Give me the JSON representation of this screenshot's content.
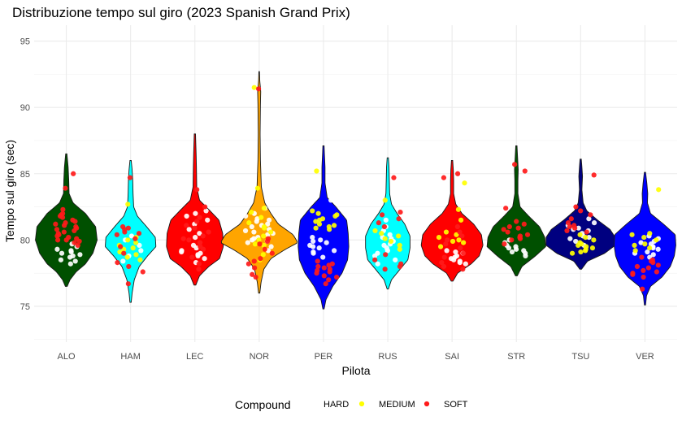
{
  "chart_data": {
    "type": "violin",
    "title": "Distribuzione tempo sul giro (2023 Spanish Grand Prix)",
    "xlabel": "Pilota",
    "ylabel": "Tempo sul giro (sec)",
    "ylim": [
      72.3,
      96.2
    ],
    "yticks": [
      75,
      80,
      85,
      90,
      95
    ],
    "grid": true,
    "categories": [
      "ALO",
      "HAM",
      "LEC",
      "NOR",
      "PER",
      "RUS",
      "SAI",
      "STR",
      "TSU",
      "VER"
    ],
    "team_colors": {
      "ALO": "#005000",
      "HAM": "#00ffff",
      "LEC": "#ff0000",
      "NOR": "#ffa500",
      "PER": "#0000ff",
      "RUS": "#00ffff",
      "SAI": "#ff0000",
      "STR": "#005000",
      "TSU": "#000080",
      "VER": "#0000ff"
    },
    "violins": [
      {
        "driver": "ALO",
        "min": 76.5,
        "max": 86.5,
        "profile": [
          [
            76.5,
            0.03
          ],
          [
            77,
            0.12
          ],
          [
            77.6,
            0.32
          ],
          [
            78.2,
            0.62
          ],
          [
            79,
            0.86
          ],
          [
            80,
            1.0
          ],
          [
            81,
            0.95
          ],
          [
            82,
            0.62
          ],
          [
            82.8,
            0.22
          ],
          [
            83.5,
            0.09
          ],
          [
            84.5,
            0.08
          ],
          [
            85.5,
            0.06
          ],
          [
            86.5,
            0.02
          ]
        ]
      },
      {
        "driver": "HAM",
        "min": 75.3,
        "max": 86.0,
        "profile": [
          [
            75.3,
            0.02
          ],
          [
            76,
            0.05
          ],
          [
            77,
            0.12
          ],
          [
            78,
            0.28
          ],
          [
            78.8,
            0.55
          ],
          [
            79.5,
            0.82
          ],
          [
            80.2,
            0.8
          ],
          [
            81,
            0.52
          ],
          [
            81.8,
            0.22
          ],
          [
            82.5,
            0.1
          ],
          [
            83.5,
            0.08
          ],
          [
            84.5,
            0.07
          ],
          [
            85.3,
            0.05
          ],
          [
            86,
            0.02
          ]
        ]
      },
      {
        "driver": "LEC",
        "min": 76.6,
        "max": 88.0,
        "profile": [
          [
            76.6,
            0.03
          ],
          [
            77.3,
            0.15
          ],
          [
            78,
            0.45
          ],
          [
            78.6,
            0.8
          ],
          [
            79.5,
            0.92
          ],
          [
            80.5,
            0.9
          ],
          [
            81.5,
            0.78
          ],
          [
            82.3,
            0.45
          ],
          [
            83,
            0.15
          ],
          [
            84,
            0.06
          ],
          [
            85.5,
            0.05
          ],
          [
            86.5,
            0.04
          ],
          [
            88,
            0.02
          ]
        ]
      },
      {
        "driver": "NOR",
        "min": 76.0,
        "max": 92.7,
        "profile": [
          [
            76,
            0.02
          ],
          [
            76.8,
            0.06
          ],
          [
            77.8,
            0.15
          ],
          [
            78.6,
            0.38
          ],
          [
            79.3,
            0.85
          ],
          [
            79.8,
            1.25
          ],
          [
            80.4,
            1.1
          ],
          [
            81.2,
            0.62
          ],
          [
            82,
            0.38
          ],
          [
            82.8,
            0.18
          ],
          [
            84,
            0.07
          ],
          [
            86,
            0.04
          ],
          [
            88,
            0.03
          ],
          [
            90.2,
            0.04
          ],
          [
            91.2,
            0.05
          ],
          [
            92,
            0.02
          ],
          [
            92.7,
            0.01
          ]
        ]
      },
      {
        "driver": "PER",
        "min": 74.8,
        "max": 87.1,
        "profile": [
          [
            74.8,
            0.02
          ],
          [
            75.5,
            0.08
          ],
          [
            76.5,
            0.3
          ],
          [
            77.5,
            0.6
          ],
          [
            78.5,
            0.78
          ],
          [
            79.5,
            0.82
          ],
          [
            80.5,
            0.8
          ],
          [
            81.5,
            0.75
          ],
          [
            82.5,
            0.4
          ],
          [
            83.2,
            0.12
          ],
          [
            84.3,
            0.05
          ],
          [
            85.5,
            0.05
          ],
          [
            86.5,
            0.03
          ],
          [
            87.1,
            0.02
          ]
        ]
      },
      {
        "driver": "RUS",
        "min": 76.3,
        "max": 86.2,
        "profile": [
          [
            76.3,
            0.02
          ],
          [
            77,
            0.12
          ],
          [
            77.8,
            0.4
          ],
          [
            78.5,
            0.65
          ],
          [
            79.4,
            0.72
          ],
          [
            80.3,
            0.72
          ],
          [
            81.2,
            0.55
          ],
          [
            82,
            0.3
          ],
          [
            82.7,
            0.12
          ],
          [
            83.5,
            0.06
          ],
          [
            84.5,
            0.05
          ],
          [
            85.5,
            0.04
          ],
          [
            86.2,
            0.02
          ]
        ]
      },
      {
        "driver": "SAI",
        "min": 76.9,
        "max": 86.0,
        "profile": [
          [
            76.9,
            0.03
          ],
          [
            77.5,
            0.18
          ],
          [
            78.2,
            0.62
          ],
          [
            78.8,
            0.88
          ],
          [
            79.6,
            1.0
          ],
          [
            80.4,
            0.95
          ],
          [
            81.2,
            0.7
          ],
          [
            82,
            0.32
          ],
          [
            82.7,
            0.12
          ],
          [
            83.5,
            0.05
          ],
          [
            84.5,
            0.05
          ],
          [
            85.3,
            0.04
          ],
          [
            86,
            0.02
          ]
        ]
      },
      {
        "driver": "STR",
        "min": 77.3,
        "max": 87.1,
        "profile": [
          [
            77.3,
            0.03
          ],
          [
            78,
            0.18
          ],
          [
            78.8,
            0.62
          ],
          [
            79.5,
            0.95
          ],
          [
            80.2,
            0.92
          ],
          [
            81,
            0.75
          ],
          [
            81.8,
            0.4
          ],
          [
            82.5,
            0.12
          ],
          [
            83.5,
            0.05
          ],
          [
            84.5,
            0.05
          ],
          [
            85.3,
            0.06
          ],
          [
            86.2,
            0.04
          ],
          [
            87.1,
            0.02
          ]
        ]
      },
      {
        "driver": "TSU",
        "min": 77.8,
        "max": 86.1,
        "profile": [
          [
            77.8,
            0.03
          ],
          [
            78.4,
            0.22
          ],
          [
            79,
            0.78
          ],
          [
            79.6,
            1.12
          ],
          [
            80.2,
            1.12
          ],
          [
            80.8,
            0.95
          ],
          [
            81.5,
            0.55
          ],
          [
            82.2,
            0.2
          ],
          [
            82.8,
            0.08
          ],
          [
            83.8,
            0.04
          ],
          [
            84.8,
            0.06
          ],
          [
            85.5,
            0.04
          ],
          [
            86.1,
            0.02
          ]
        ]
      },
      {
        "driver": "VER",
        "min": 75.1,
        "max": 85.1,
        "profile": [
          [
            75.1,
            0.02
          ],
          [
            75.8,
            0.05
          ],
          [
            76.5,
            0.18
          ],
          [
            77.2,
            0.55
          ],
          [
            78,
            0.82
          ],
          [
            78.8,
            0.95
          ],
          [
            79.6,
            1.0
          ],
          [
            80.4,
            0.98
          ],
          [
            81.2,
            0.6
          ],
          [
            82,
            0.18
          ],
          [
            82.8,
            0.08
          ],
          [
            83.5,
            0.09
          ],
          [
            84.3,
            0.06
          ],
          [
            85.1,
            0.02
          ]
        ]
      }
    ],
    "points": {
      "ALO": {
        "HARD": [
          78.2,
          78.5,
          78.7,
          78.9,
          79.1,
          79.2,
          79.3,
          79.5,
          79.7,
          78.4,
          78.8,
          79.0
        ],
        "SOFT": [
          79.8,
          80.0,
          80.2,
          80.4,
          80.5,
          80.7,
          80.9,
          81.0,
          81.2,
          81.3,
          81.5,
          81.7,
          81.8,
          82.0,
          79.6,
          80.1,
          80.6,
          81.1,
          81.4,
          80.3,
          80.8,
          81.9,
          82.3,
          80.0,
          79.9,
          83.9,
          85.0
        ]
      },
      "HAM": {
        "HARD": [
          78.4,
          78.8,
          79.2,
          79.6,
          80.0,
          80.3
        ],
        "MEDIUM": [
          78.5,
          78.9,
          79.1,
          79.4,
          79.6,
          79.8,
          80.0,
          80.2,
          79.3,
          78.7,
          82.7
        ],
        "SOFT": [
          76.7,
          77.6,
          78.0,
          78.3,
          79.0,
          79.5,
          80.1,
          80.4,
          80.6,
          80.8,
          80.9,
          81.0,
          80.5,
          84.7
        ]
      },
      "LEC": {
        "HARD": [
          78.3,
          78.6,
          78.8,
          79.0,
          79.2,
          79.4,
          79.6,
          80.2,
          80.5,
          80.8,
          81.2,
          81.5,
          81.8,
          82.0,
          82.2,
          78.9,
          79.1
        ],
        "SOFT": [
          77.8,
          78.2,
          78.7,
          79.3,
          79.8,
          80.0,
          80.3,
          80.6,
          80.9,
          81.1,
          81.4,
          81.7,
          82.5,
          83.8,
          79.5,
          80.1
        ]
      },
      "NOR": {
        "HARD": [
          79.5,
          79.8,
          80.0,
          80.2,
          80.4,
          80.6,
          80.8,
          81.0,
          81.2,
          81.4,
          81.6,
          81.8,
          82.0,
          82.4,
          79.2,
          79.9,
          80.5,
          81.1,
          81.5,
          80.1,
          80.7,
          85.5
        ],
        "MEDIUM": [
          78.5,
          78.9,
          79.3,
          79.6,
          80.0,
          80.3,
          80.6,
          81.0,
          81.3,
          81.7,
          82.1,
          82.4,
          83.9,
          91.5,
          80.9,
          79.7
        ],
        "SOFT": [
          77.2,
          77.4,
          77.9,
          78.2,
          78.6,
          79.0,
          79.3,
          79.7,
          80.1,
          79.9,
          78.4,
          91.4
        ]
      },
      "PER": {
        "HARD": [
          78.7,
          79.0,
          79.2,
          79.4,
          79.6,
          79.8,
          80.0,
          80.2,
          79.1,
          79.5,
          79.9,
          83.0
        ],
        "MEDIUM": [
          80.8,
          81.0,
          81.2,
          81.4,
          81.6,
          81.8,
          82.0,
          82.2,
          81.1,
          81.5,
          81.9,
          80.9,
          85.2
        ],
        "SOFT": [
          76.7,
          77.2,
          77.5,
          77.8,
          78.0,
          78.2,
          78.4,
          77.3,
          77.6,
          77.9,
          78.1,
          77.0,
          77.7
        ]
      },
      "RUS": {
        "HARD": [
          78.2,
          78.5,
          78.8,
          79.0,
          79.2,
          79.4,
          79.6,
          79.9,
          80.1,
          80.4,
          80.7,
          81.0,
          81.5,
          79.7,
          80.2
        ],
        "MEDIUM": [
          79.3,
          79.6,
          79.9,
          80.1,
          80.3,
          80.5,
          80.7,
          83.0
        ],
        "SOFT": [
          77.8,
          78.0,
          78.2,
          78.5,
          78.9,
          81.0,
          81.3,
          81.6,
          81.9,
          82.1,
          84.7
        ]
      },
      "SAI": {
        "HARD": [
          78.2,
          78.4,
          78.6,
          78.8,
          79.0,
          79.2,
          78.3,
          78.7,
          79.1,
          78.5
        ],
        "MEDIUM": [
          79.5,
          79.8,
          80.0,
          80.2,
          80.4,
          80.6,
          81.5,
          82.3,
          84.3,
          79.9
        ],
        "SOFT": [
          77.8,
          78.0,
          78.3,
          78.7,
          79.0,
          79.4,
          79.7,
          80.0,
          80.3,
          80.6,
          81.0,
          85.0,
          84.7
        ]
      },
      "STR": {
        "HARD": [
          78.8,
          79.0,
          79.2,
          79.4,
          79.6,
          79.8,
          80.0,
          79.1,
          79.5,
          79.3
        ],
        "SOFT": [
          79.7,
          80.0,
          80.2,
          80.4,
          80.6,
          80.8,
          81.0,
          81.2,
          81.4,
          80.3,
          80.9,
          82.4,
          85.2,
          85.7,
          80.1
        ]
      },
      "TSU": {
        "HARD": [
          79.6,
          79.9,
          80.1,
          80.3,
          80.5,
          80.7,
          80.9,
          81.1,
          81.3,
          81.6,
          80.2,
          80.8
        ],
        "MEDIUM": [
          79.0,
          79.2,
          79.4,
          79.6,
          79.8,
          80.0,
          80.2,
          80.4,
          79.3,
          79.7,
          79.1,
          79.5
        ],
        "SOFT": [
          80.6,
          80.9,
          81.1,
          81.3,
          81.6,
          81.9,
          82.2,
          82.5,
          80.7,
          81.0,
          84.9
        ]
      },
      "VER": {
        "HARD": [
          78.9,
          79.1,
          79.3,
          79.5,
          79.7,
          79.9,
          80.1,
          80.3,
          78.7,
          79.0,
          79.4,
          79.8
        ],
        "MEDIUM": [
          79.4,
          79.7,
          80.0,
          80.2,
          80.4,
          80.5,
          79.6,
          79.2,
          83.8
        ],
        "SOFT": [
          76.3,
          77.2,
          77.4,
          77.6,
          77.7,
          77.9,
          78.1,
          78.3,
          78.5,
          78.7,
          78.0,
          78.4,
          77.5
        ]
      }
    },
    "legend": {
      "title": "Compound",
      "position": "bottom",
      "entries": [
        {
          "name": "HARD",
          "color": "#ffffff"
        },
        {
          "name": "MEDIUM",
          "color": "#ffff00"
        },
        {
          "name": "SOFT",
          "color": "#ff1a1a"
        }
      ]
    }
  }
}
